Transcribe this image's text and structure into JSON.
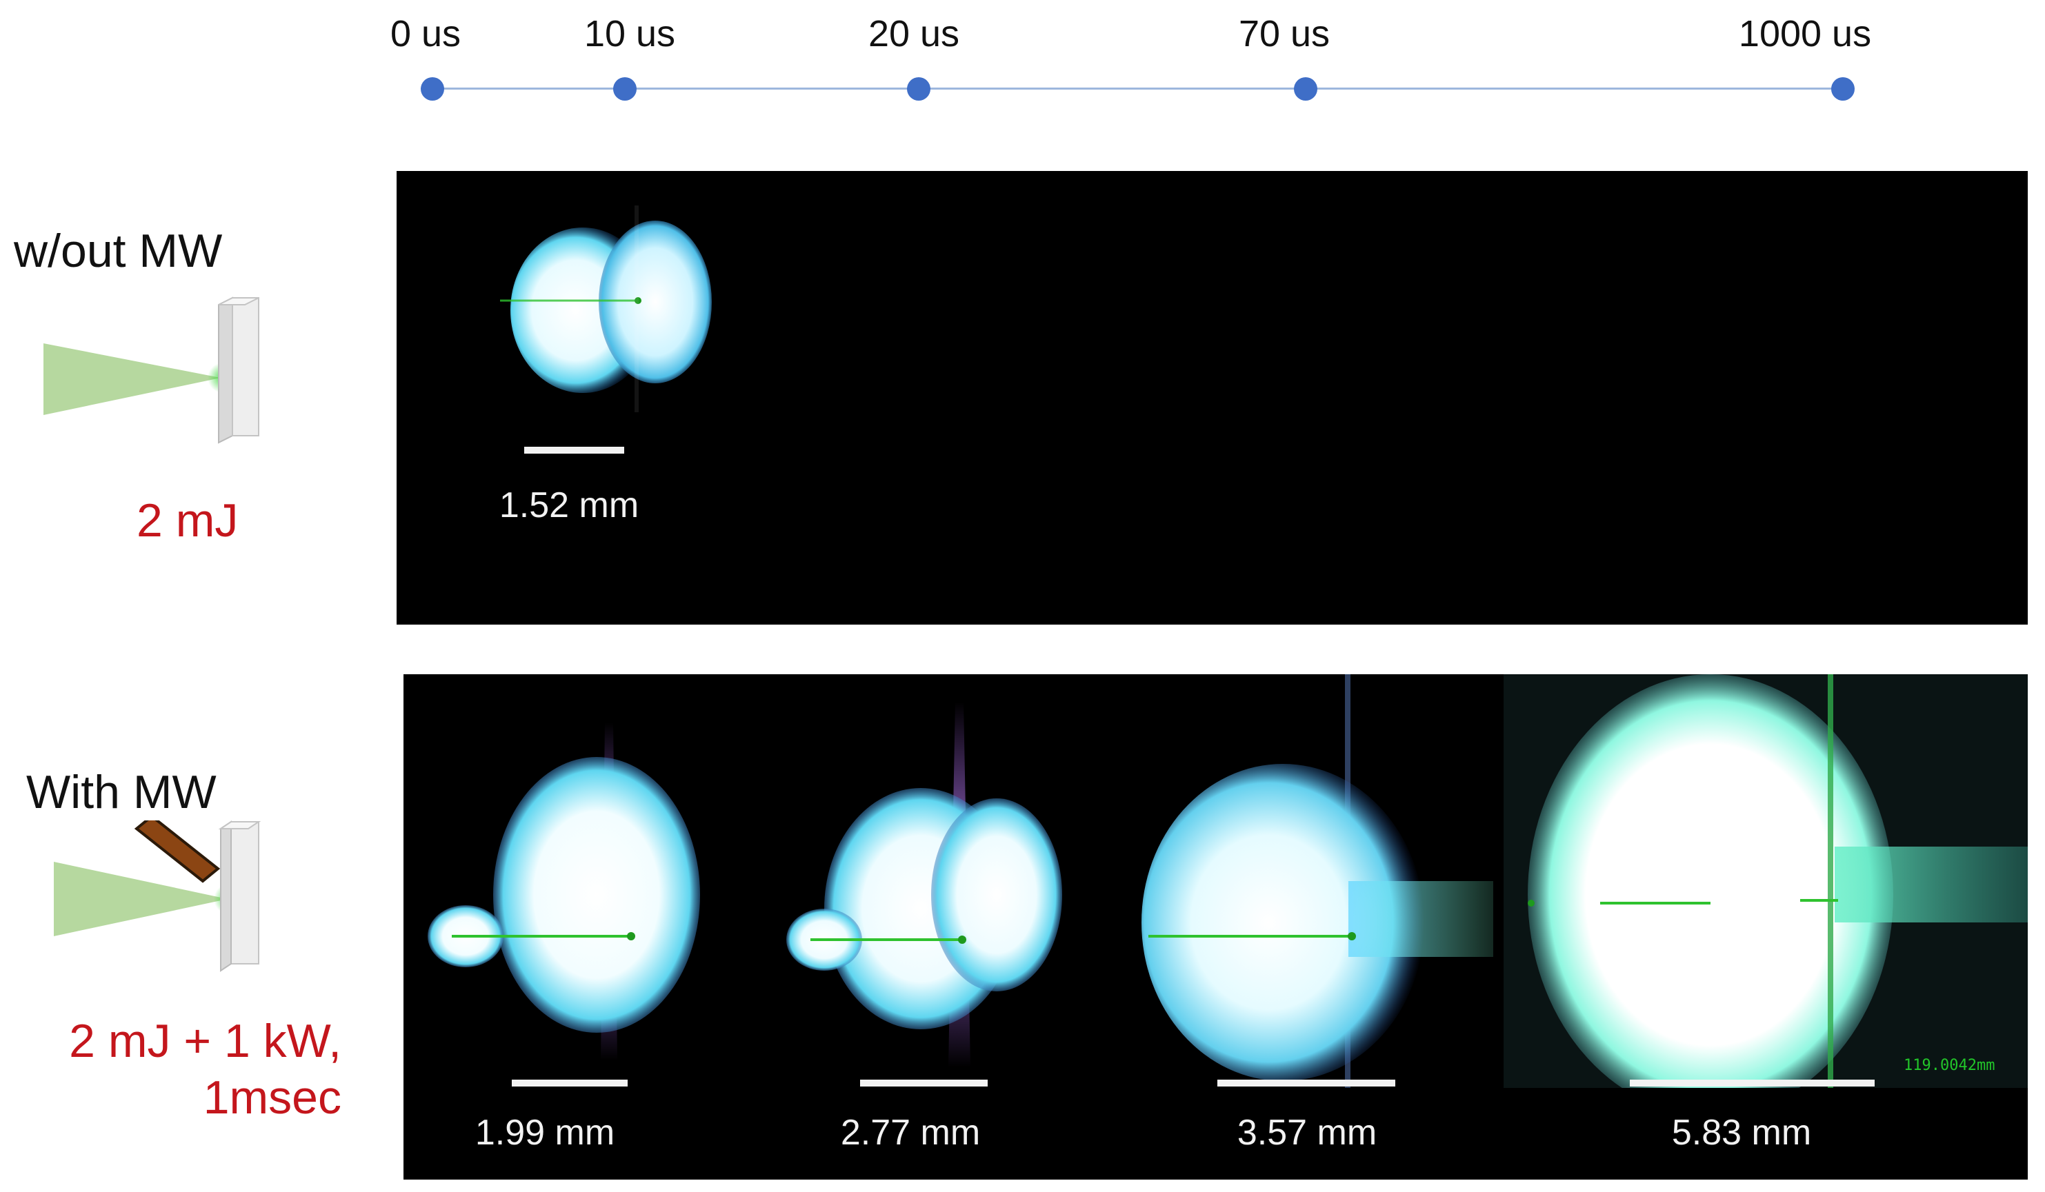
{
  "timeline": {
    "labels": [
      "0 us",
      "10 us",
      "20 us",
      "70 us",
      "1000 us"
    ],
    "line_color": "#9db7dd",
    "dot_color": "#3f6ec7"
  },
  "row_without": {
    "title": "w/out MW",
    "energy": "2 mJ",
    "scale_label": "1.52 mm"
  },
  "row_with": {
    "title": "With MW",
    "energy_line1": "2 mJ + 1 kW,",
    "energy_line2": "1msec",
    "scale_labels": [
      "1.99 mm",
      "2.77 mm",
      "3.57 mm",
      "5.83 mm"
    ],
    "overlay_readout": "119.0042mm"
  },
  "colors": {
    "accent_red": "#c4161c",
    "laser_green": "#a9d18e",
    "plasma_cyan": "#7fe3ff",
    "antenna_brown": "#8b4513"
  }
}
